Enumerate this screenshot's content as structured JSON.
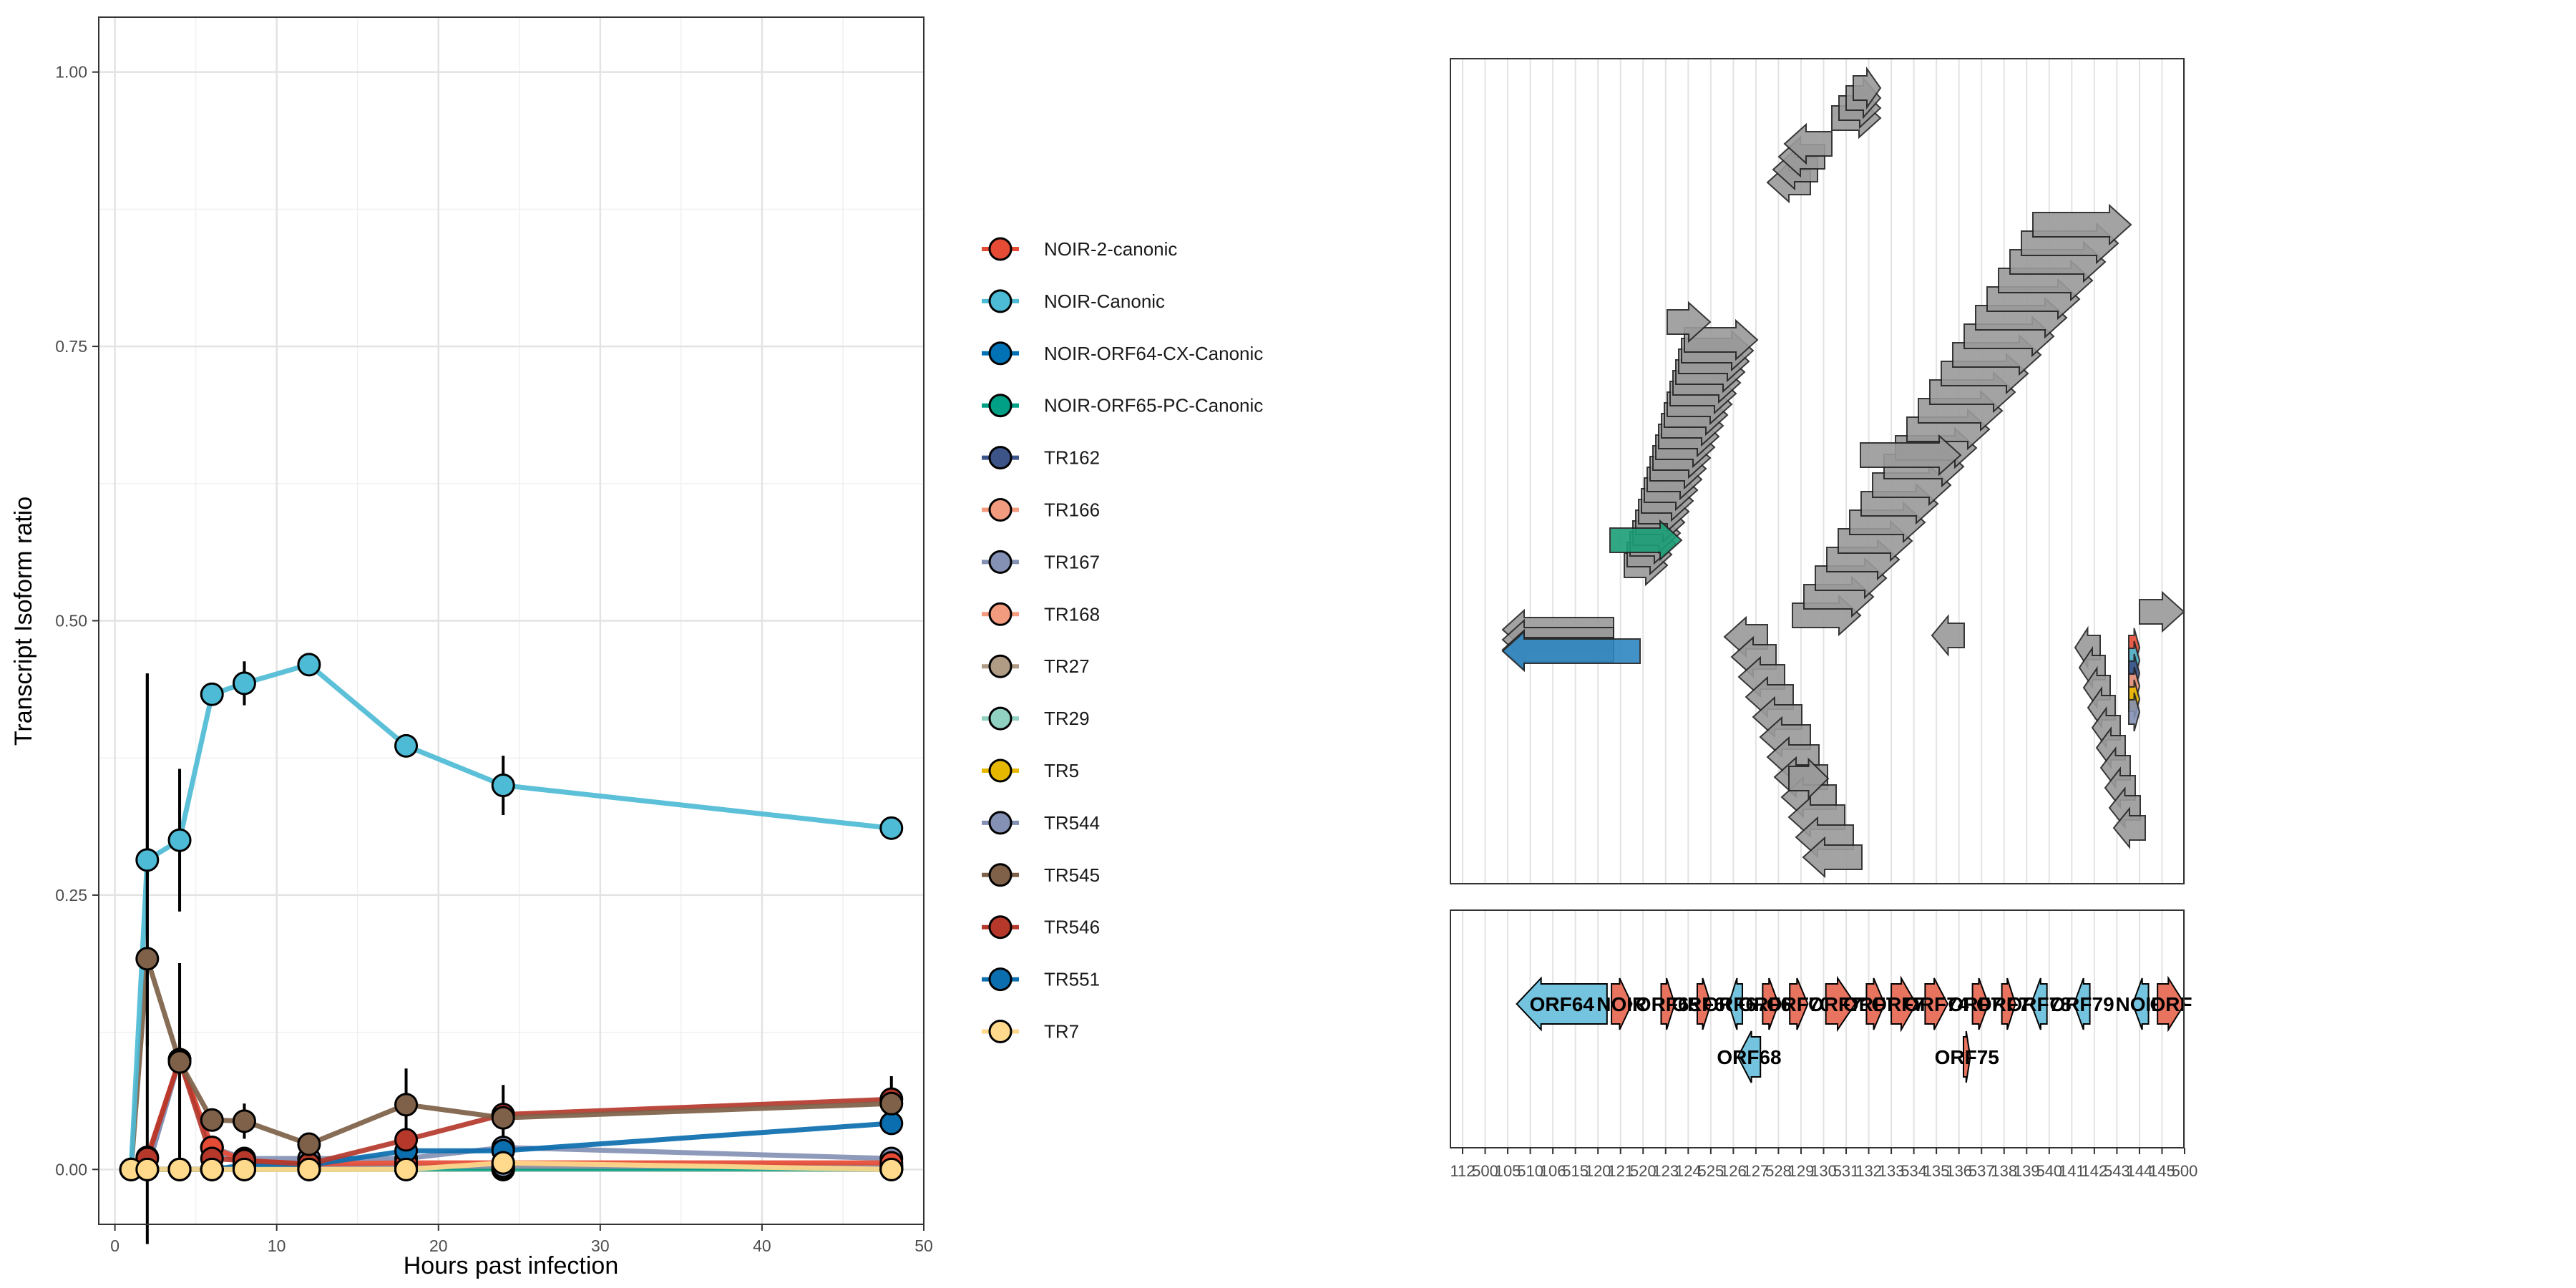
{
  "chart_data": [
    {
      "type": "line",
      "xlabel": "Hours past infection",
      "ylabel": "Transcript Isoform ratio",
      "xlim": [
        -1,
        50
      ],
      "ylim": [
        -0.05,
        1.05
      ],
      "x_ticks": [
        "0",
        "10",
        "20",
        "30",
        "40",
        "50"
      ],
      "y_ticks": [
        "0.00",
        "0.25",
        "0.50",
        "0.75",
        "1.00"
      ],
      "x": [
        1,
        2,
        4,
        6,
        8,
        12,
        18,
        24,
        48
      ],
      "grid": true,
      "legend": "right",
      "series": [
        {
          "name": "NOIR-2-canonic",
          "color": "#E64B35",
          "values": [
            0,
            0.011,
            0.1,
            0.02,
            0.008,
            0.005,
            0.006,
            0.006,
            0.006
          ]
        },
        {
          "name": "NOIR-Canonic",
          "color": "#4DBBD5",
          "values": [
            0,
            0.282,
            0.3,
            0.433,
            0.443,
            0.46,
            0.386,
            0.35,
            0.311
          ],
          "err": [
            0,
            0.17,
            0.065,
            0.01,
            0.02,
            0.008,
            0.008,
            0.027,
            0.005
          ]
        },
        {
          "name": "NOIR-ORF64-CX-Canonic",
          "color": "#0072B5",
          "values": [
            0,
            0,
            0,
            0,
            0.002,
            0.002,
            0.003,
            0.002,
            0.002
          ]
        },
        {
          "name": "NOIR-ORF65-PC-Canonic",
          "color": "#00A087",
          "values": [
            0,
            0,
            0,
            0,
            0.001,
            0.001,
            0.001,
            0.001,
            0.001
          ]
        },
        {
          "name": "TR162",
          "color": "#3C5488",
          "values": [
            0,
            0,
            0,
            0,
            0,
            0,
            0,
            0,
            0
          ]
        },
        {
          "name": "TR166",
          "color": "#F39B7F",
          "values": [
            0,
            0,
            0,
            0,
            0,
            0,
            0,
            0,
            0
          ]
        },
        {
          "name": "TR167",
          "color": "#8491B4",
          "values": [
            0,
            0,
            0.1,
            0.02,
            0.004,
            0.003,
            0.003,
            0.003,
            0.003
          ]
        },
        {
          "name": "TR168",
          "color": "#F39B7F",
          "values": [
            0,
            0,
            0,
            0,
            0,
            0,
            0,
            0,
            0
          ]
        },
        {
          "name": "TR27",
          "color": "#B09C85",
          "values": [
            0,
            0,
            0,
            0,
            0,
            0,
            0,
            0,
            0
          ]
        },
        {
          "name": "TR29",
          "color": "#91D1C2",
          "values": [
            0,
            0,
            0,
            0,
            0,
            0,
            0,
            0,
            0
          ]
        },
        {
          "name": "TR5",
          "color": "#E7B800",
          "values": [
            0,
            0,
            0,
            0,
            0.002,
            0.002,
            0.003,
            0.003,
            0.003
          ]
        },
        {
          "name": "TR544",
          "color": "#8491B4",
          "values": [
            0,
            0,
            0.1,
            0.02,
            0.01,
            0.01,
            0.01,
            0.02,
            0.01
          ]
        },
        {
          "name": "TR545",
          "color": "#7E6148",
          "values": [
            0,
            0.192,
            0.098,
            0.045,
            0.044,
            0.023,
            0.059,
            0.047,
            0.06
          ],
          "err": [
            0,
            0.26,
            0.09,
            0.008,
            0.016,
            0.005,
            0.033,
            0.03,
            0.025
          ]
        },
        {
          "name": "TR546",
          "color": "#B5382B",
          "values": [
            0,
            0.01,
            0.1,
            0.01,
            0.008,
            0.005,
            0.027,
            0.05,
            0.064
          ]
        },
        {
          "name": "TR551",
          "color": "#0B6EAF",
          "values": [
            0,
            0,
            0,
            0,
            0.004,
            0.004,
            0.017,
            0.017,
            0.042
          ]
        },
        {
          "name": "TR7",
          "color": "#FFD98C",
          "values": [
            0,
            0,
            0,
            0,
            0,
            0,
            0,
            0.006,
            0
          ]
        }
      ]
    },
    {
      "type": "genome-track",
      "x_ticks": [
        "112",
        "500",
        "105",
        "510",
        "106",
        "515",
        "120",
        "121",
        "520",
        "123",
        "124",
        "525",
        "126",
        "127",
        "528",
        "129",
        "130",
        "531",
        "132",
        "133",
        "534",
        "135",
        "136",
        "537",
        "138",
        "139",
        "540",
        "141",
        "142",
        "543",
        "144",
        "145",
        "500"
      ],
      "features": [
        {
          "label": "ORF64",
          "strand": "-",
          "color": "#74C4E0",
          "row": 0,
          "start": 2.4,
          "end": 6.4
        },
        {
          "label": "NOIR",
          "strand": "+",
          "color": "#E8735E",
          "row": 0,
          "start": 6.6,
          "end": 7.5
        },
        {
          "label": "ORF65",
          "strand": "+",
          "color": "#E8735E",
          "row": 0,
          "start": 8.8,
          "end": 9.4
        },
        {
          "label": "ORF66",
          "strand": "+",
          "color": "#E8735E",
          "row": 0,
          "start": 10.4,
          "end": 11.0
        },
        {
          "label": "ORF67",
          "strand": "-",
          "color": "#74C4E0",
          "row": 0,
          "start": 11.8,
          "end": 12.4
        },
        {
          "label": "ORF68",
          "strand": "-",
          "color": "#74C4E0",
          "row": 1,
          "start": 12.2,
          "end": 13.2
        },
        {
          "label": "ORF69",
          "strand": "+",
          "color": "#E8735E",
          "row": 0,
          "start": 13.3,
          "end": 14.0
        },
        {
          "label": "ORF70",
          "strand": "+",
          "color": "#E8735E",
          "row": 0,
          "start": 14.5,
          "end": 15.3
        },
        {
          "label": "ORF71",
          "strand": "+",
          "color": "#E8735E",
          "row": 0,
          "start": 16.1,
          "end": 17.4
        },
        {
          "label": "ORF72",
          "strand": "+",
          "color": "#E8735E",
          "row": 0,
          "start": 17.9,
          "end": 18.7
        },
        {
          "label": "ORF73",
          "strand": "+",
          "color": "#E8735E",
          "row": 0,
          "start": 19.0,
          "end": 20.1
        },
        {
          "label": "ORF74",
          "strand": "+",
          "color": "#E8735E",
          "row": 0,
          "start": 20.5,
          "end": 21.5
        },
        {
          "label": "ORF75",
          "strand": "+",
          "color": "#E8735E",
          "row": 1,
          "start": 22.2,
          "end": 22.5
        },
        {
          "label": "ORF76",
          "strand": "+",
          "color": "#E8735E",
          "row": 0,
          "start": 22.6,
          "end": 23.3
        },
        {
          "label": "ORF77",
          "strand": "+",
          "color": "#E8735E",
          "row": 0,
          "start": 23.9,
          "end": 24.5
        },
        {
          "label": "ORF78",
          "strand": "-",
          "color": "#74C4E0",
          "row": 0,
          "start": 25.2,
          "end": 25.9
        },
        {
          "label": "ORF79",
          "strand": "-",
          "color": "#74C4E0",
          "row": 0,
          "start": 27.1,
          "end": 27.8
        },
        {
          "label": "NOIR",
          "strand": "-",
          "color": "#74C4E0",
          "row": 0,
          "start": 29.7,
          "end": 30.4
        },
        {
          "label": "ORF",
          "strand": "+",
          "color": "#E8735E",
          "row": 0,
          "start": 30.8,
          "end": 32.0
        }
      ]
    }
  ]
}
